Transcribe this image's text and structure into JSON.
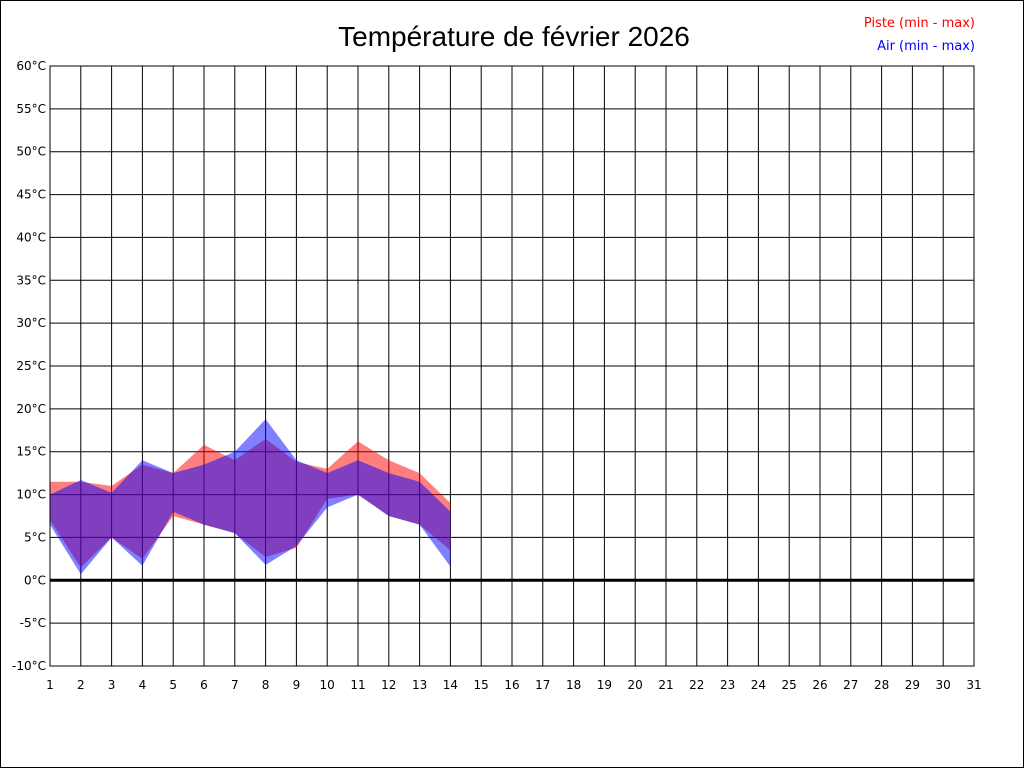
{
  "chart_data": {
    "type": "area",
    "title": "Température de février 2026",
    "xlabel": "",
    "ylabel": "",
    "x": [
      1,
      2,
      3,
      4,
      5,
      6,
      7,
      8,
      9,
      10,
      11,
      12,
      13,
      14
    ],
    "x_ticks": [
      "1",
      "2",
      "3",
      "4",
      "5",
      "6",
      "7",
      "8",
      "9",
      "10",
      "11",
      "12",
      "13",
      "14",
      "15",
      "16",
      "17",
      "18",
      "19",
      "20",
      "21",
      "22",
      "23",
      "24",
      "25",
      "26",
      "27",
      "28",
      "29",
      "30",
      "31"
    ],
    "xlim": [
      1,
      31
    ],
    "y_ticks": [
      "-10°C",
      "-5°C",
      "0°C",
      "5°C",
      "10°C",
      "15°C",
      "20°C",
      "25°C",
      "30°C",
      "35°C",
      "40°C",
      "45°C",
      "50°C",
      "55°C",
      "60°C"
    ],
    "ylim": [
      -10,
      60
    ],
    "grid": true,
    "legend_position": "top-right",
    "series": [
      {
        "name": "Piste (min - max)",
        "color": "#ff0000",
        "min": [
          7.0,
          1.5,
          5.0,
          2.5,
          7.5,
          6.5,
          5.5,
          2.7,
          3.8,
          9.5,
          10.0,
          7.5,
          6.5,
          3.5
        ],
        "max": [
          11.5,
          11.5,
          11.0,
          13.5,
          12.5,
          15.8,
          14.0,
          16.5,
          13.8,
          13.0,
          16.2,
          14.0,
          12.5,
          9.0
        ]
      },
      {
        "name": "Air (min - max)",
        "color": "#0000ff",
        "min": [
          6.5,
          0.7,
          5.0,
          1.7,
          8.0,
          6.5,
          5.5,
          1.8,
          4.0,
          8.5,
          10.0,
          7.5,
          6.5,
          1.6
        ],
        "max": [
          10.0,
          11.7,
          10.2,
          14.0,
          12.5,
          13.5,
          15.0,
          18.8,
          14.0,
          12.5,
          14.0,
          12.5,
          11.5,
          8.0
        ]
      }
    ]
  }
}
